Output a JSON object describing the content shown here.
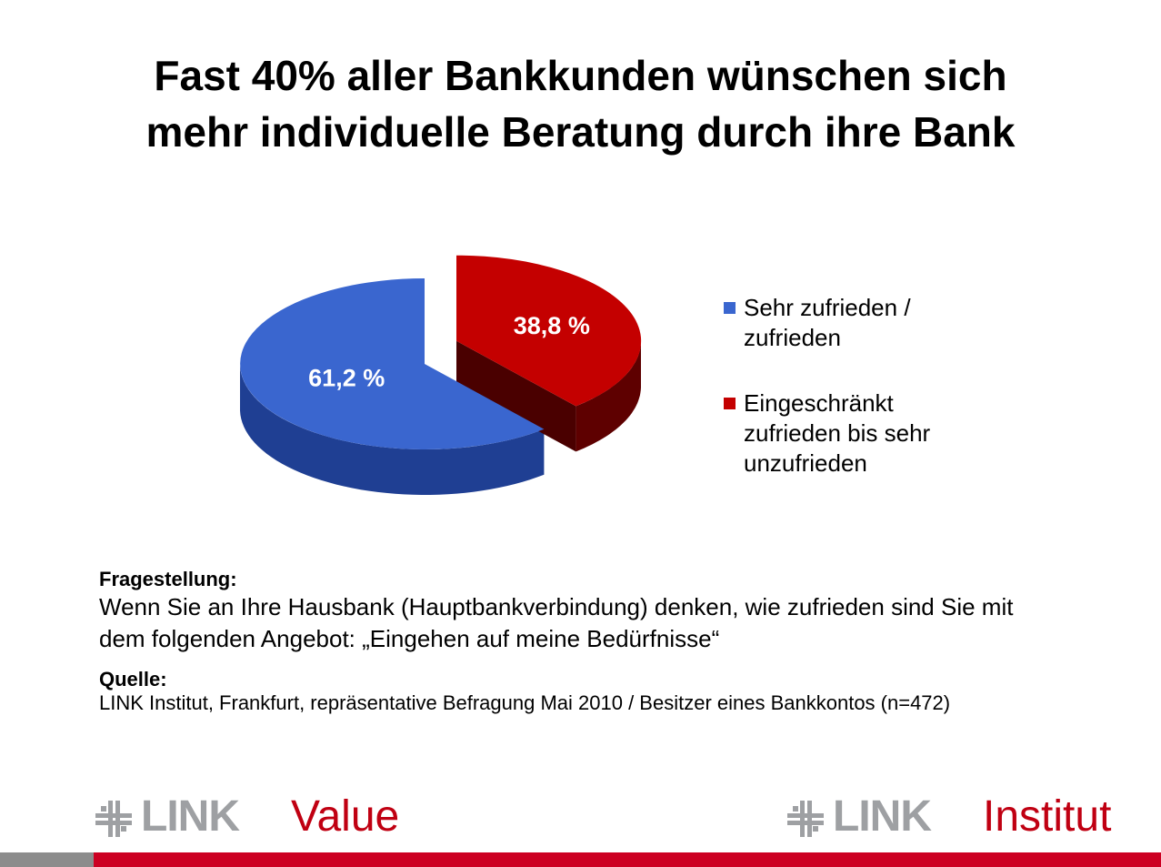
{
  "title": {
    "line1": "Fast 40% aller Bankkunden wünschen sich",
    "line2": "mehr individuelle Beratung durch ihre Bank"
  },
  "chart_data": {
    "type": "pie",
    "style": "3d-exploded",
    "categories": [
      "Sehr zufrieden / zufrieden",
      "Eingeschränkt zufrieden bis sehr unzufrieden"
    ],
    "values": [
      61.2,
      38.8
    ],
    "data_labels": [
      "61,2 %",
      "38,8 %"
    ],
    "colors": [
      "#3a66cf",
      "#c40000"
    ],
    "side_colors": [
      "#1f3f93",
      "#5e0000"
    ],
    "legend": {
      "placement": "right",
      "entries": [
        {
          "lines": [
            "Sehr zufrieden /",
            "zufrieden"
          ],
          "color": "#3a66cf"
        },
        {
          "lines": [
            "Eingeschränkt",
            "zufrieden bis sehr",
            "unzufrieden"
          ],
          "color": "#c40000"
        }
      ]
    }
  },
  "question": {
    "heading": "Fragestellung:",
    "line1": "Wenn Sie an Ihre Hausbank (Hauptbankverbindung) denken, wie zufrieden sind Sie mit",
    "line2": "dem folgenden Angebot: „Eingehen auf meine Bedürfnisse“"
  },
  "source": {
    "heading": "Quelle:",
    "text": "LINK Institut, Frankfurt, repräsentative Befragung Mai 2010 / Besitzer eines Bankkontos (n=472)"
  },
  "logos": {
    "left": {
      "bold": "LINK",
      "light": "Value",
      "icon": "link-logo-icon"
    },
    "right": {
      "bold": "LINK",
      "light": "Institut",
      "icon": "link-logo-icon"
    }
  },
  "colors": {
    "brand_red": "#cc0022",
    "brand_grey": "#9ea0a3"
  }
}
